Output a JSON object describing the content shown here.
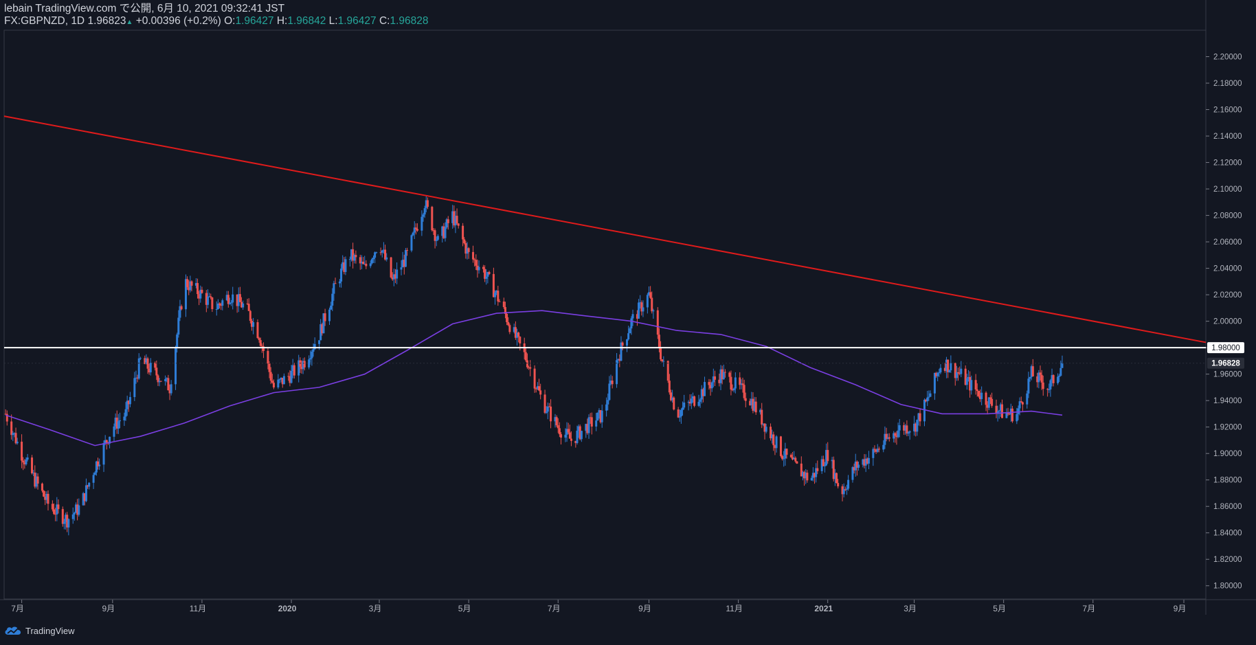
{
  "header": {
    "line1": "lebain TradingView.com で公開, 6月 10, 2021 09:32:41 JST",
    "symbol": "FX:GBPNZD, 1D",
    "price": "1.96823",
    "change": "+0.00396 (+0.2%)",
    "o_label": "O:",
    "o_value": "1.96427",
    "h_label": "H:",
    "h_value": "1.96842",
    "l_label": "L:",
    "l_value": "1.96427",
    "c_label": "C:",
    "c_value": "1.96828"
  },
  "footer": {
    "brand": "TradingView"
  },
  "colors": {
    "background": "#131722",
    "up": "#2f7ed8",
    "down": "#ef5350",
    "trendline": "#e01b1b",
    "ma": "#7b3fe4",
    "level": "#ffffff"
  },
  "chart_data": {
    "type": "line",
    "title": "FX:GBPNZD, 1D",
    "ylim": [
      1.79,
      2.22
    ],
    "y_ticks": [
      "2.20000",
      "2.18000",
      "2.16000",
      "2.14000",
      "2.12000",
      "2.10000",
      "2.08000",
      "2.06000",
      "2.04000",
      "2.02000",
      "2.00000",
      "1.98000",
      "1.96000",
      "1.94000",
      "1.92000",
      "1.90000",
      "1.88000",
      "1.86000",
      "1.84000",
      "1.82000",
      "1.80000"
    ],
    "x_ticks": [
      "7月",
      "9月",
      "11月",
      "2020",
      "3月",
      "5月",
      "7月",
      "9月",
      "11月",
      "2021",
      "3月",
      "5月",
      "7月",
      "9月"
    ],
    "x_tick_dates": [
      "2019-07-01",
      "2019-09-01",
      "2019-11-01",
      "2020-01-01",
      "2020-03-01",
      "2020-05-01",
      "2020-07-01",
      "2020-09-01",
      "2020-11-01",
      "2021-01-01",
      "2021-03-01",
      "2021-05-01",
      "2021-07-01",
      "2021-09-01"
    ],
    "x_range": [
      "2019-06-19",
      "2021-09-16"
    ],
    "price_path": {
      "dates": [
        "2019-06-20",
        "2019-07-01",
        "2019-07-10",
        "2019-07-20",
        "2019-08-01",
        "2019-08-10",
        "2019-08-20",
        "2019-09-01",
        "2019-09-10",
        "2019-09-20",
        "2019-10-01",
        "2019-10-10",
        "2019-10-20",
        "2019-11-01",
        "2019-11-10",
        "2019-11-20",
        "2019-12-01",
        "2019-12-10",
        "2019-12-20",
        "2020-01-01",
        "2020-01-10",
        "2020-01-20",
        "2020-02-01",
        "2020-02-10",
        "2020-02-20",
        "2020-03-01",
        "2020-03-10",
        "2020-03-20",
        "2020-04-01",
        "2020-04-10",
        "2020-04-20",
        "2020-05-01",
        "2020-05-10",
        "2020-05-20",
        "2020-06-01",
        "2020-06-10",
        "2020-06-20",
        "2020-07-01",
        "2020-07-10",
        "2020-07-20",
        "2020-08-01",
        "2020-08-10",
        "2020-08-20",
        "2020-09-01",
        "2020-09-10",
        "2020-09-20",
        "2020-10-01",
        "2020-10-10",
        "2020-10-20",
        "2020-11-01",
        "2020-11-10",
        "2020-11-20",
        "2020-12-01",
        "2020-12-10",
        "2020-12-20",
        "2021-01-01",
        "2021-01-10",
        "2021-01-20",
        "2021-02-01",
        "2021-02-10",
        "2021-02-20",
        "2021-03-01",
        "2021-03-10",
        "2021-03-20",
        "2021-04-01",
        "2021-04-10",
        "2021-04-20",
        "2021-05-01",
        "2021-05-10",
        "2021-05-20",
        "2021-06-01",
        "2021-06-10"
      ],
      "close": [
        1.93,
        1.9,
        1.88,
        1.86,
        1.85,
        1.86,
        1.89,
        1.92,
        1.93,
        1.97,
        1.96,
        1.95,
        2.03,
        2.02,
        2.01,
        2.02,
        2.01,
        1.99,
        1.95,
        1.96,
        1.97,
        1.99,
        2.03,
        2.05,
        2.04,
        2.06,
        2.03,
        2.05,
        2.09,
        2.06,
        2.08,
        2.05,
        2.04,
        2.02,
        1.99,
        1.97,
        1.94,
        1.92,
        1.91,
        1.92,
        1.93,
        1.97,
        2.0,
        2.02,
        1.97,
        1.93,
        1.94,
        1.95,
        1.96,
        1.95,
        1.94,
        1.92,
        1.9,
        1.89,
        1.88,
        1.9,
        1.87,
        1.89,
        1.9,
        1.91,
        1.92,
        1.92,
        1.94,
        1.97,
        1.96,
        1.95,
        1.94,
        1.93,
        1.93,
        1.96,
        1.95,
        1.968
      ]
    },
    "ma_path": {
      "dates": [
        "2019-06-20",
        "2019-07-20",
        "2019-08-20",
        "2019-09-20",
        "2019-10-20",
        "2019-11-20",
        "2019-12-20",
        "2020-01-20",
        "2020-02-20",
        "2020-03-20",
        "2020-04-20",
        "2020-05-20",
        "2020-06-20",
        "2020-07-20",
        "2020-08-20",
        "2020-09-20",
        "2020-10-20",
        "2020-11-20",
        "2020-12-20",
        "2021-01-20",
        "2021-02-20",
        "2021-03-20",
        "2021-04-20",
        "2021-05-20",
        "2021-06-10"
      ],
      "values": [
        1.929,
        1.918,
        1.906,
        1.913,
        1.923,
        1.936,
        1.946,
        1.95,
        1.96,
        1.978,
        1.998,
        2.006,
        2.008,
        2.004,
        2.0,
        1.993,
        1.99,
        1.981,
        1.965,
        1.952,
        1.937,
        1.93,
        1.93,
        1.932,
        1.929
      ]
    },
    "trendline": {
      "start_date": "2019-06-19",
      "start_value": 2.155,
      "end_date": "2021-09-16",
      "end_value": 1.984
    },
    "horizontal_level": "1.98000",
    "last_price_label": "1.96828"
  }
}
